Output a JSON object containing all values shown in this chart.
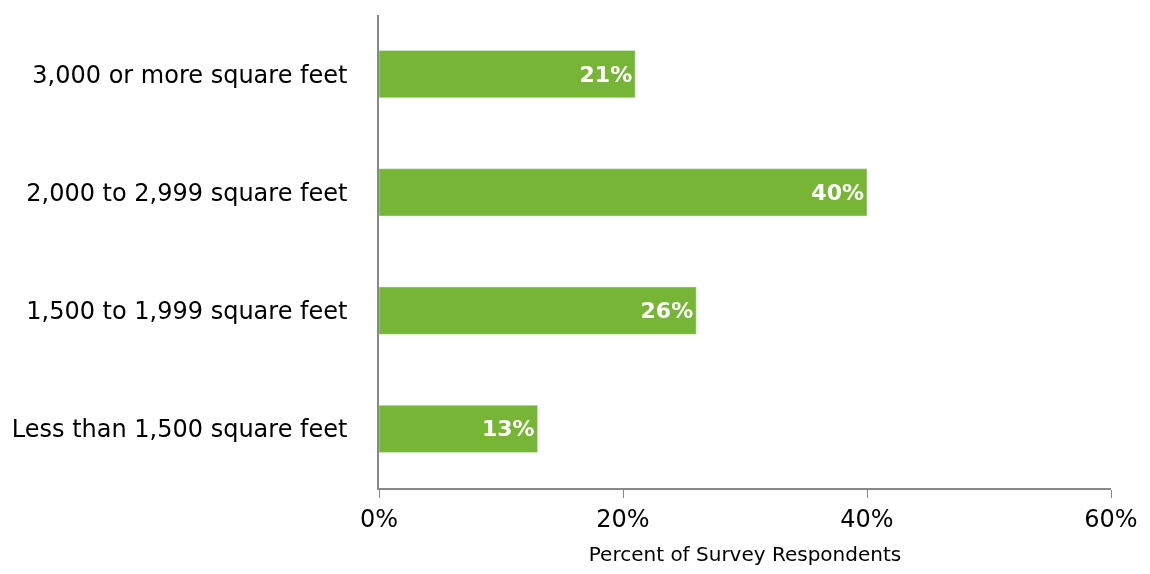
{
  "chart_data": {
    "type": "bar",
    "orientation": "horizontal",
    "xlabel": "Percent of Survey Respondents",
    "categories": [
      "3,000 or more square feet",
      "2,000 to 2,999 square feet",
      "1,500 to 1,999 square feet",
      "Less than 1,500 square feet"
    ],
    "values": [
      21,
      40,
      26,
      13
    ],
    "value_labels": [
      "21%",
      "40%",
      "26%",
      "13%"
    ],
    "color": "#76b536",
    "xlim": [
      0,
      60
    ],
    "xticks": [
      {
        "value": 0,
        "label": "0%"
      },
      {
        "value": 20,
        "label": "20%"
      },
      {
        "value": 40,
        "label": "40%"
      },
      {
        "value": 60,
        "label": "60%"
      }
    ],
    "legend": false
  }
}
